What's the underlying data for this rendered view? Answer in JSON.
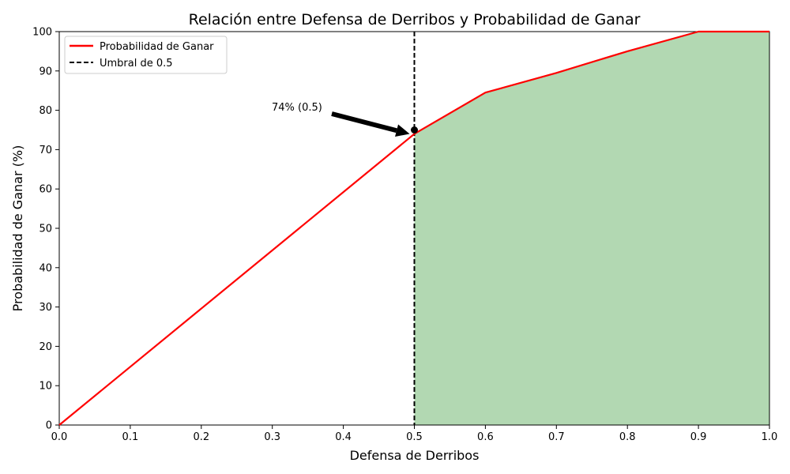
{
  "chart_data": {
    "type": "line",
    "title": "Relación entre Defensa de Derribos y Probabilidad de Ganar",
    "xlabel": "Defensa de Derribos",
    "ylabel": "Probabilidad de Ganar (%)",
    "xlim": [
      0,
      1
    ],
    "ylim": [
      0,
      100
    ],
    "x_ticks": [
      "0.0",
      "0.1",
      "0.2",
      "0.3",
      "0.4",
      "0.5",
      "0.6",
      "0.7",
      "0.8",
      "0.9",
      "1.0"
    ],
    "y_ticks": [
      "0",
      "10",
      "20",
      "30",
      "40",
      "50",
      "60",
      "70",
      "80",
      "90",
      "100"
    ],
    "grid": false,
    "legend_position": "top-left",
    "series": [
      {
        "name": "Probabilidad de Ganar",
        "color": "#ff0000",
        "x": [
          0.0,
          0.5,
          0.6,
          0.7,
          0.8,
          0.9,
          1.0
        ],
        "y": [
          0,
          74,
          84.5,
          89.5,
          95,
          100,
          100
        ]
      }
    ],
    "threshold": {
      "name": "Umbral de 0.5",
      "x": 0.5,
      "color": "#000000",
      "style": "dashed"
    },
    "shaded_region": {
      "from_x": 0.5,
      "to_x": 1.0,
      "color": "#b2d8b2"
    },
    "annotation": {
      "text": "74% (0.5)",
      "point": [
        0.5,
        75
      ]
    }
  }
}
